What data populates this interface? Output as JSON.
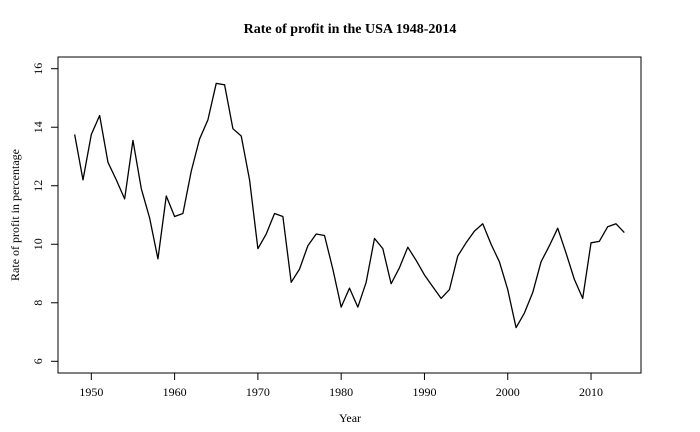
{
  "chart_data": {
    "type": "line",
    "title": "Rate of profit in the USA 1948-2014",
    "xlabel": "Year",
    "ylabel": "Rate of profit in percentage",
    "xlim": [
      1946,
      2016
    ],
    "ylim": [
      5.6,
      16.4
    ],
    "x_ticks": [
      1950,
      1960,
      1970,
      1980,
      1990,
      2000,
      2010
    ],
    "y_ticks": [
      6,
      8,
      10,
      12,
      14,
      16
    ],
    "grid": false,
    "legend": "none",
    "line_color": "#000000",
    "x": [
      1948,
      1949,
      1950,
      1951,
      1952,
      1953,
      1954,
      1955,
      1956,
      1957,
      1958,
      1959,
      1960,
      1961,
      1962,
      1963,
      1964,
      1965,
      1966,
      1967,
      1968,
      1969,
      1970,
      1971,
      1972,
      1973,
      1974,
      1975,
      1976,
      1977,
      1978,
      1979,
      1980,
      1981,
      1982,
      1983,
      1984,
      1985,
      1986,
      1987,
      1988,
      1989,
      1990,
      1991,
      1992,
      1993,
      1994,
      1995,
      1996,
      1997,
      1998,
      1999,
      2000,
      2001,
      2002,
      2003,
      2004,
      2005,
      2006,
      2007,
      2008,
      2009,
      2010,
      2011,
      2012,
      2013,
      2014
    ],
    "series": [
      {
        "values": [
          13.75,
          12.2,
          13.75,
          14.4,
          12.8,
          12.2,
          11.55,
          13.55,
          11.9,
          10.9,
          9.5,
          11.65,
          10.95,
          11.05,
          12.5,
          13.6,
          14.25,
          15.5,
          15.45,
          13.95,
          13.7,
          12.2,
          9.85,
          10.35,
          11.05,
          10.95,
          8.7,
          9.15,
          9.95,
          10.35,
          10.3,
          9.15,
          7.85,
          8.5,
          7.85,
          8.7,
          10.2,
          9.85,
          8.65,
          9.2,
          9.9,
          9.45,
          8.95,
          8.55,
          8.15,
          8.45,
          9.6,
          10.05,
          10.45,
          10.7,
          10.0,
          9.4,
          8.45,
          7.15,
          7.65,
          8.35,
          9.4,
          9.95,
          10.55,
          9.7,
          8.8,
          8.15,
          10.05,
          10.1,
          10.6,
          10.7,
          10.4
        ]
      }
    ]
  }
}
